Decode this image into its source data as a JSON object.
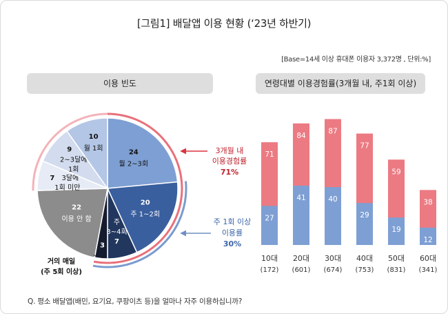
{
  "header": {
    "title": "[그림1] 배달앱 이용 현황 (‘23년 하반기)",
    "base_note": "[Base=14세 이상 휴대폰 이용자 3,372명 , 단위:%]"
  },
  "left_panel": {
    "header": "이용 빈도"
  },
  "right_panel": {
    "header": "연령대별 이용경험률(3개월 내, 주1회 이상)"
  },
  "callouts": {
    "three_month": {
      "line1": "3개월 내",
      "line2": "이용경험률",
      "value": "71%"
    },
    "weekly": {
      "line1": "주 1회 이상",
      "line2": "이용률",
      "value": "30%"
    },
    "almost_daily": {
      "line1": "거의 매일",
      "line2": "(주 5회 이상)"
    }
  },
  "question": "Q. 평소 배달앱(배민, 요기요, 쿠팡이츠 등)을 얼마나 자주 이용하십니까?",
  "colors": {
    "red_arc": "#e8707a",
    "red_arc_light": "#f2b3b8",
    "blue_arc": "#7a9bcf",
    "bar_red": "#ec7a82",
    "bar_blue": "#7e9fd3"
  },
  "chart_data": [
    {
      "type": "pie",
      "title": "이용 빈도",
      "slices": [
        {
          "label": "월 2~3회",
          "value": 24,
          "color": "#7e9fd3",
          "text_color": "#111111",
          "bold_value": true
        },
        {
          "label": "주 1~2회",
          "value": 20,
          "color": "#3a5f9e",
          "text_color": "#ffffff",
          "bold_value": true
        },
        {
          "label": "주 3~4회",
          "value": 7,
          "color": "#22375e",
          "text_color": "#ffffff",
          "bold_value": true
        },
        {
          "label": "거의 매일 (주 5회 이상)",
          "value": 3,
          "color": "#151c2e",
          "text_color": "#ffffff",
          "bold_value": true
        },
        {
          "label": "이용 안 함",
          "value": 22,
          "color": "#8c8c8c",
          "text_color": "#ffffff",
          "bold_value": true
        },
        {
          "label": "3달에 1회 미만",
          "value": 7,
          "color": "#e6ebf5",
          "text_color": "#111111",
          "bold_value": true
        },
        {
          "label": "2~3달에 1회",
          "value": 9,
          "color": "#d3dcee",
          "text_color": "#111111",
          "bold_value": true
        },
        {
          "label": "월 1회",
          "value": 10,
          "color": "#b3c6e6",
          "text_color": "#111111",
          "bold_value": true
        }
      ]
    },
    {
      "type": "bar",
      "title": "연령대별 이용경험률(3개월 내, 주1회 이상)",
      "stacked": false,
      "categories": [
        "10대",
        "20대",
        "30대",
        "40대",
        "50대",
        "60대"
      ],
      "sample_sizes": [
        "(172)",
        "(601)",
        "(674)",
        "(753)",
        "(831)",
        "(341)"
      ],
      "series": [
        {
          "name": "3개월 내 이용경험률",
          "values": [
            71,
            84,
            87,
            77,
            59,
            38
          ]
        },
        {
          "name": "주 1회 이상 이용률",
          "values": [
            27,
            41,
            40,
            29,
            19,
            12
          ]
        }
      ],
      "ylim": [
        0,
        100
      ]
    }
  ]
}
